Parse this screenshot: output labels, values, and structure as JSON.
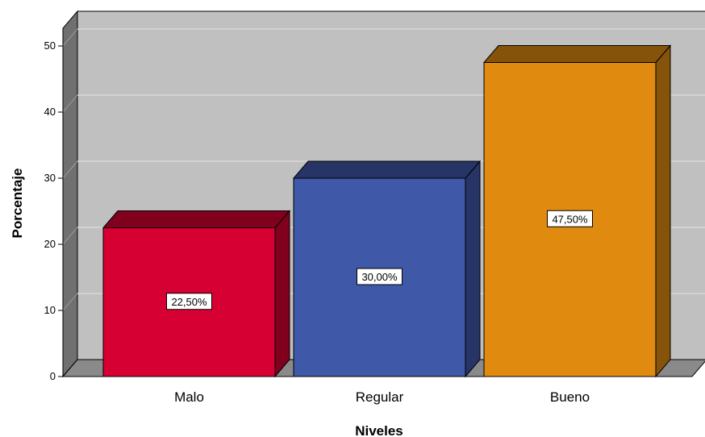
{
  "chart_data": {
    "type": "bar",
    "style": "3d",
    "categories": [
      "Malo",
      "Regular",
      "Bueno"
    ],
    "values": [
      22.5,
      30.0,
      47.5
    ],
    "data_labels": [
      "22,50%",
      "30,00%",
      "47,50%"
    ],
    "colors": [
      "#d70032",
      "#3f58a8",
      "#e08a10"
    ],
    "xlabel": "Niveles",
    "ylabel": "Porcentaje",
    "ylim": [
      0,
      50
    ],
    "yticks": [
      0,
      10,
      20,
      30,
      40,
      50
    ],
    "grid": true,
    "legend": "none"
  }
}
